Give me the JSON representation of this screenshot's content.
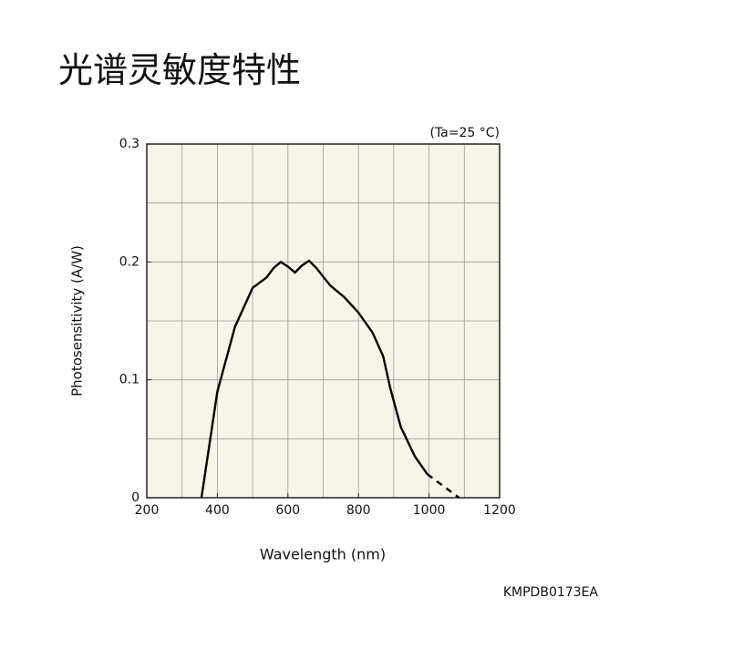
{
  "chart_data": {
    "type": "line",
    "title": "光谱灵敏度特性",
    "annotation": "(Ta=25 °C)",
    "code": "KMPDB0173EA",
    "x_label": "Wavelength (nm)",
    "y_label": "Photosensitivity (A/W)",
    "xlim": [
      200,
      1200
    ],
    "xticks": [
      200,
      400,
      600,
      800,
      1000,
      1200
    ],
    "ylim": [
      0,
      0.3
    ],
    "yticks": [
      0,
      0.1,
      0.2,
      0.3
    ],
    "xgrid": [
      300,
      400,
      500,
      600,
      700,
      800,
      900,
      1000,
      1100
    ],
    "ygrid": [
      0.05,
      0.1,
      0.15,
      0.2,
      0.25
    ],
    "grid": true,
    "background": "#f7f5ea",
    "color": "#000000",
    "series": [
      {
        "style": "solid",
        "x": [
          355,
          380,
          400,
          450,
          500,
          540,
          560,
          580,
          600,
          620,
          640,
          660,
          680,
          720,
          760,
          800,
          840,
          870,
          890,
          920,
          960,
          995
        ],
        "values": [
          0,
          0.05,
          0.09,
          0.145,
          0.178,
          0.187,
          0.195,
          0.2,
          0.196,
          0.191,
          0.197,
          0.201,
          0.195,
          0.18,
          0.17,
          0.157,
          0.14,
          0.12,
          0.093,
          0.06,
          0.035,
          0.02
        ]
      },
      {
        "style": "dashed",
        "x": [
          995,
          1040,
          1085
        ],
        "values": [
          0.02,
          0.01,
          0
        ]
      }
    ]
  }
}
